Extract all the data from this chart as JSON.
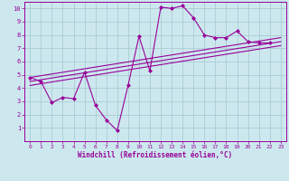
{
  "xlabel": "Windchill (Refroidissement éolien,°C)",
  "bg_color": "#cce8ee",
  "grid_color": "#aaccd4",
  "line_color": "#990099",
  "xlim": [
    -0.5,
    23.5
  ],
  "ylim": [
    0,
    10.5
  ],
  "xticks": [
    0,
    1,
    2,
    3,
    4,
    5,
    6,
    7,
    8,
    9,
    10,
    11,
    12,
    13,
    14,
    15,
    16,
    17,
    18,
    19,
    20,
    21,
    22,
    23
  ],
  "yticks": [
    1,
    2,
    3,
    4,
    5,
    6,
    7,
    8,
    9,
    10
  ],
  "data_x": [
    0,
    1,
    2,
    3,
    4,
    5,
    6,
    7,
    8,
    9,
    10,
    11,
    12,
    13,
    14,
    15,
    16,
    17,
    18,
    19,
    20,
    21,
    22
  ],
  "data_y": [
    4.8,
    4.5,
    2.9,
    3.3,
    3.2,
    5.2,
    2.7,
    1.6,
    0.8,
    4.2,
    7.9,
    5.3,
    10.1,
    10.0,
    10.2,
    9.3,
    8.0,
    7.8,
    7.8,
    8.3,
    7.5,
    7.4,
    7.4
  ],
  "trend1_x": [
    0,
    23
  ],
  "trend1_y": [
    4.8,
    7.8
  ],
  "trend2_x": [
    0,
    23
  ],
  "trend2_y": [
    4.5,
    7.5
  ],
  "trend3_x": [
    0,
    23
  ],
  "trend3_y": [
    4.2,
    7.2
  ]
}
